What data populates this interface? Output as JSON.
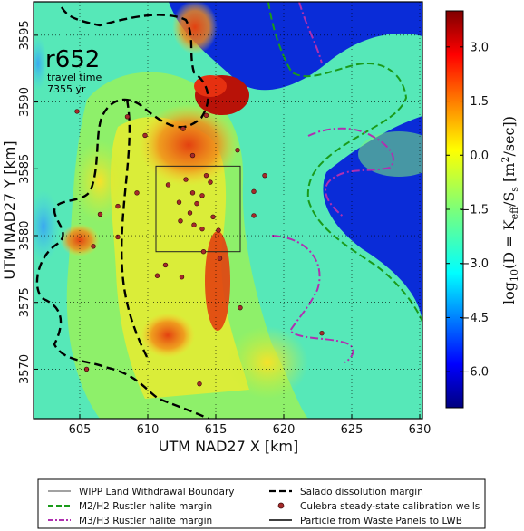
{
  "chart_data": {
    "type": "heatmap",
    "panel_label": "r652",
    "annotation_lines": [
      "travel time",
      "7355 yr"
    ],
    "xlabel": "UTM NAD27 X [km]",
    "ylabel": "UTM NAD27 Y [km]",
    "xlim": [
      601.6,
      630.2
    ],
    "ylim": [
      3566.3,
      3597.5
    ],
    "xticks": [
      605,
      610,
      615,
      620,
      625,
      630
    ],
    "yticks": [
      3570,
      3575,
      3580,
      3585,
      3590,
      3595
    ],
    "grid": true,
    "colorbar": {
      "label": "log10(D = K_eff / S_s [m^2/sec])",
      "label_parts": {
        "prefix": "log",
        "sub10": "10",
        "mid": "(D = K",
        "sub_eff": "eff",
        "div": "/S",
        "sub_s": "s",
        "units": " [m",
        "sup2": "2",
        "end": "/sec])"
      },
      "range": [
        -7.0,
        4.0
      ],
      "ticks": [
        3.0,
        1.5,
        0.0,
        -1.5,
        -3.0,
        -4.5,
        -6.0
      ],
      "tick_labels": [
        "3.0",
        "1.5",
        "0.0",
        "−1.5",
        "−3.0",
        "−4.5",
        "−6.0"
      ],
      "colormap": "jet"
    },
    "wipp_box": {
      "x": [
        610.6,
        616.8
      ],
      "y": [
        3578.8,
        3585.2
      ]
    },
    "wells": [
      {
        "x": 605.5,
        "y": 3570.0
      },
      {
        "x": 606.5,
        "y": 3581.6
      },
      {
        "x": 606.0,
        "y": 3579.2
      },
      {
        "x": 607.8,
        "y": 3579.9
      },
      {
        "x": 607.8,
        "y": 3582.2
      },
      {
        "x": 608.5,
        "y": 3588.9
      },
      {
        "x": 609.2,
        "y": 3583.2
      },
      {
        "x": 609.8,
        "y": 3587.5
      },
      {
        "x": 610.7,
        "y": 3577.0
      },
      {
        "x": 611.5,
        "y": 3583.8
      },
      {
        "x": 612.3,
        "y": 3582.5
      },
      {
        "x": 612.4,
        "y": 3581.1
      },
      {
        "x": 612.6,
        "y": 3588.0
      },
      {
        "x": 612.8,
        "y": 3584.2
      },
      {
        "x": 613.1,
        "y": 3581.7
      },
      {
        "x": 613.3,
        "y": 3586.0
      },
      {
        "x": 613.3,
        "y": 3583.2
      },
      {
        "x": 613.4,
        "y": 3580.8
      },
      {
        "x": 613.6,
        "y": 3582.4
      },
      {
        "x": 614.0,
        "y": 3583.0
      },
      {
        "x": 614.0,
        "y": 3580.5
      },
      {
        "x": 614.1,
        "y": 3578.8
      },
      {
        "x": 614.3,
        "y": 3584.5
      },
      {
        "x": 614.6,
        "y": 3584.0
      },
      {
        "x": 614.8,
        "y": 3581.4
      },
      {
        "x": 615.2,
        "y": 3580.4
      },
      {
        "x": 615.3,
        "y": 3578.3
      },
      {
        "x": 616.6,
        "y": 3586.4
      },
      {
        "x": 616.8,
        "y": 3574.6
      },
      {
        "x": 617.8,
        "y": 3583.3
      },
      {
        "x": 618.6,
        "y": 3584.5
      },
      {
        "x": 622.8,
        "y": 3572.7
      },
      {
        "x": 614.3,
        "y": 3589.0
      },
      {
        "x": 612.5,
        "y": 3576.9
      },
      {
        "x": 613.8,
        "y": 3568.9
      },
      {
        "x": 604.8,
        "y": 3589.3
      },
      {
        "x": 611.3,
        "y": 3577.8
      },
      {
        "x": 617.8,
        "y": 3581.5
      }
    ],
    "legend": {
      "placement": "bottom",
      "entries": [
        {
          "label": "WIPP Land Withdrawal Boundary",
          "style": "thin-line",
          "color": "#444444"
        },
        {
          "label": "Salado dissolution margin",
          "style": "dashed",
          "color": "#000000"
        },
        {
          "label": "M2/H2 Rustler halite margin",
          "style": "dashed",
          "color": "#1a9a1a"
        },
        {
          "label": "Culebra steady-state calibration wells",
          "style": "dot",
          "color": "#a52a2a"
        },
        {
          "label": "M3/H3 Rustler halite margin",
          "style": "dashdot",
          "color": "#b030b0"
        },
        {
          "label": "Particle from Waste Panels to LWB",
          "style": "solid",
          "color": "#000000"
        }
      ]
    },
    "colors": {
      "low": "#00007f",
      "high": "#7f0000",
      "margin_green": "#1a9a1a",
      "margin_purple": "#b030b0",
      "well_fill": "#a52a2a"
    }
  }
}
